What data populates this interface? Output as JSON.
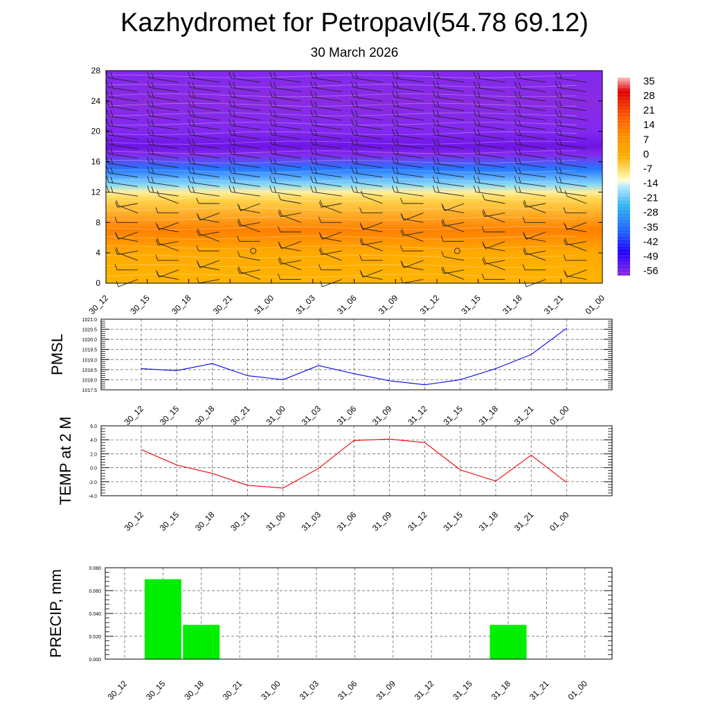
{
  "page": {
    "title": "Kazhydromet for Petropavl(54.78 69.12)",
    "subtitle": "30 March 2026"
  },
  "colors": {
    "pmsl_line": "#0000ee",
    "temp_line": "#ee0000",
    "precip_bar": "#00ee00",
    "grid": "#000000",
    "colorbar_warm": [
      "#ffe680",
      "#ffc400",
      "#ff9000",
      "#ff5a00",
      "#e00000",
      "#ff8c8c"
    ],
    "colorbar_cold": [
      "#b8e8ff",
      "#30b4f0",
      "#2060ff",
      "#2000ff",
      "#8a2be2"
    ]
  },
  "chart_data": [
    {
      "type": "heatmap",
      "name": "cross-section",
      "x_tick_labels": [
        "30_12",
        "30_15",
        "30_18",
        "30_21",
        "31_00",
        "31_03",
        "31_06",
        "31_09",
        "31_12",
        "31_15",
        "31_18",
        "31_21",
        "01_00"
      ],
      "y_ticks": [
        0,
        4,
        8,
        12,
        16,
        20,
        24,
        28
      ],
      "ylim": [
        0,
        28
      ],
      "colorbar_labels": [
        "35",
        "28",
        "21",
        "14",
        "7",
        "0",
        "-7",
        "-14",
        "-21",
        "-28",
        "-35",
        "-42",
        "-49",
        "-56"
      ],
      "colorbar_levels": [
        35,
        28,
        21,
        14,
        7,
        0,
        -7,
        -14,
        -21,
        -28,
        -35,
        -42,
        -49,
        -56
      ],
      "temperature_profile": [
        {
          "level": 0,
          "value": 2
        },
        {
          "level": 4,
          "value": 3
        },
        {
          "level": 7,
          "value": 8
        },
        {
          "level": 11,
          "value": -4
        },
        {
          "level": 12,
          "value": -10
        },
        {
          "level": 13,
          "value": -20
        },
        {
          "level": 15,
          "value": -35
        },
        {
          "level": 17,
          "value": -52
        },
        {
          "level": 18,
          "value": -60
        },
        {
          "level": 20,
          "value": -50
        },
        {
          "level": 24,
          "value": -56
        },
        {
          "level": 28,
          "value": -50
        }
      ],
      "wind_barbs": "present",
      "grid": false
    },
    {
      "type": "line",
      "name": "pmsl",
      "ylabel": "PMSL",
      "ylim": [
        1017.5,
        1021.0
      ],
      "y_tick_labels": [
        "1021.0",
        "1020.5",
        "1020.0",
        "1019.5",
        "1019.0",
        "1018.5",
        "1018.0",
        "1017.5"
      ],
      "categories": [
        "30_12",
        "30_15",
        "30_18",
        "30_21",
        "31_00",
        "31_03",
        "31_06",
        "31_09",
        "31_12",
        "31_15",
        "31_18",
        "31_21",
        "01_00"
      ],
      "values": [
        1018.55,
        1018.45,
        1018.8,
        1018.2,
        1018.0,
        1018.7,
        1018.3,
        1017.95,
        1017.75,
        1018.0,
        1018.55,
        1019.25,
        1020.55
      ],
      "grid": true
    },
    {
      "type": "line",
      "name": "temp",
      "ylabel": "TEMP at 2 M",
      "ylim": [
        -4.0,
        6.0
      ],
      "y_tick_labels": [
        "6.0",
        "4.0",
        "2.0",
        "0.0",
        "-2.0",
        "-4.0"
      ],
      "categories": [
        "30_12",
        "30_15",
        "30_18",
        "30_21",
        "31_00",
        "31_03",
        "31_06",
        "31_09",
        "31_12",
        "31_15",
        "31_18",
        "31_21",
        "01_00"
      ],
      "values": [
        2.6,
        0.4,
        -0.8,
        -2.5,
        -2.9,
        -0.1,
        3.9,
        4.1,
        3.6,
        -0.3,
        -1.9,
        1.8,
        -2.1
      ],
      "grid": true
    },
    {
      "type": "bar",
      "name": "precip",
      "ylabel": "PRECIP, mm",
      "ylim": [
        0,
        0.08
      ],
      "y_tick_labels": [
        "0.080",
        "0.060",
        "0.040",
        "0.020",
        "0.000"
      ],
      "categories": [
        "30_12",
        "30_15",
        "30_18",
        "30_21",
        "31_00",
        "31_03",
        "31_06",
        "31_09",
        "31_12",
        "31_15",
        "31_18",
        "31_21",
        "01_00"
      ],
      "values": [
        0,
        0.07,
        0.03,
        0,
        0,
        0,
        0,
        0,
        0,
        0,
        0.03,
        0,
        0
      ],
      "grid": true
    }
  ]
}
